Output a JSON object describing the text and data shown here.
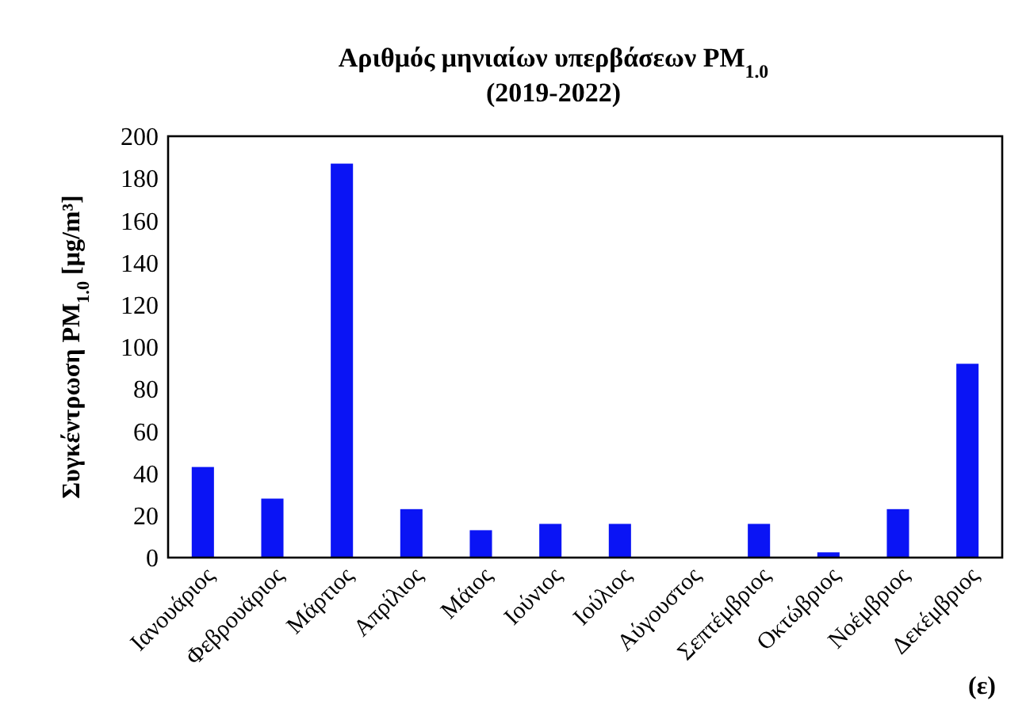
{
  "chart_data": {
    "type": "bar",
    "title": "Αριθμός μηνιαίων υπερβάσεων PM$_{1.0}$",
    "subtitle": "(2019-2022)",
    "ylabel": "Συγκέντρωση PM$_{1.0}$ [μg/m³]",
    "categories": [
      "Ιανουάριος",
      "Φεβρουάριος",
      "Μάρτιος",
      "Απρίλιος",
      "Μάιος",
      "Ιούνιος",
      "Ιούλιος",
      "Αύγουστος",
      "Σεπτέμβριος",
      "Οκτώβριος",
      "Νοέμβριος",
      "Δεκέμβριος"
    ],
    "values": [
      43,
      28,
      187,
      23,
      13,
      16,
      16,
      0,
      16,
      2.5,
      23,
      92
    ],
    "color": "#0a14f5",
    "ylim": [
      0,
      200
    ],
    "yticks": [
      0,
      20,
      40,
      60,
      80,
      100,
      120,
      140,
      160,
      180,
      200
    ],
    "grid": false,
    "annotations": [
      "(ε)"
    ]
  }
}
